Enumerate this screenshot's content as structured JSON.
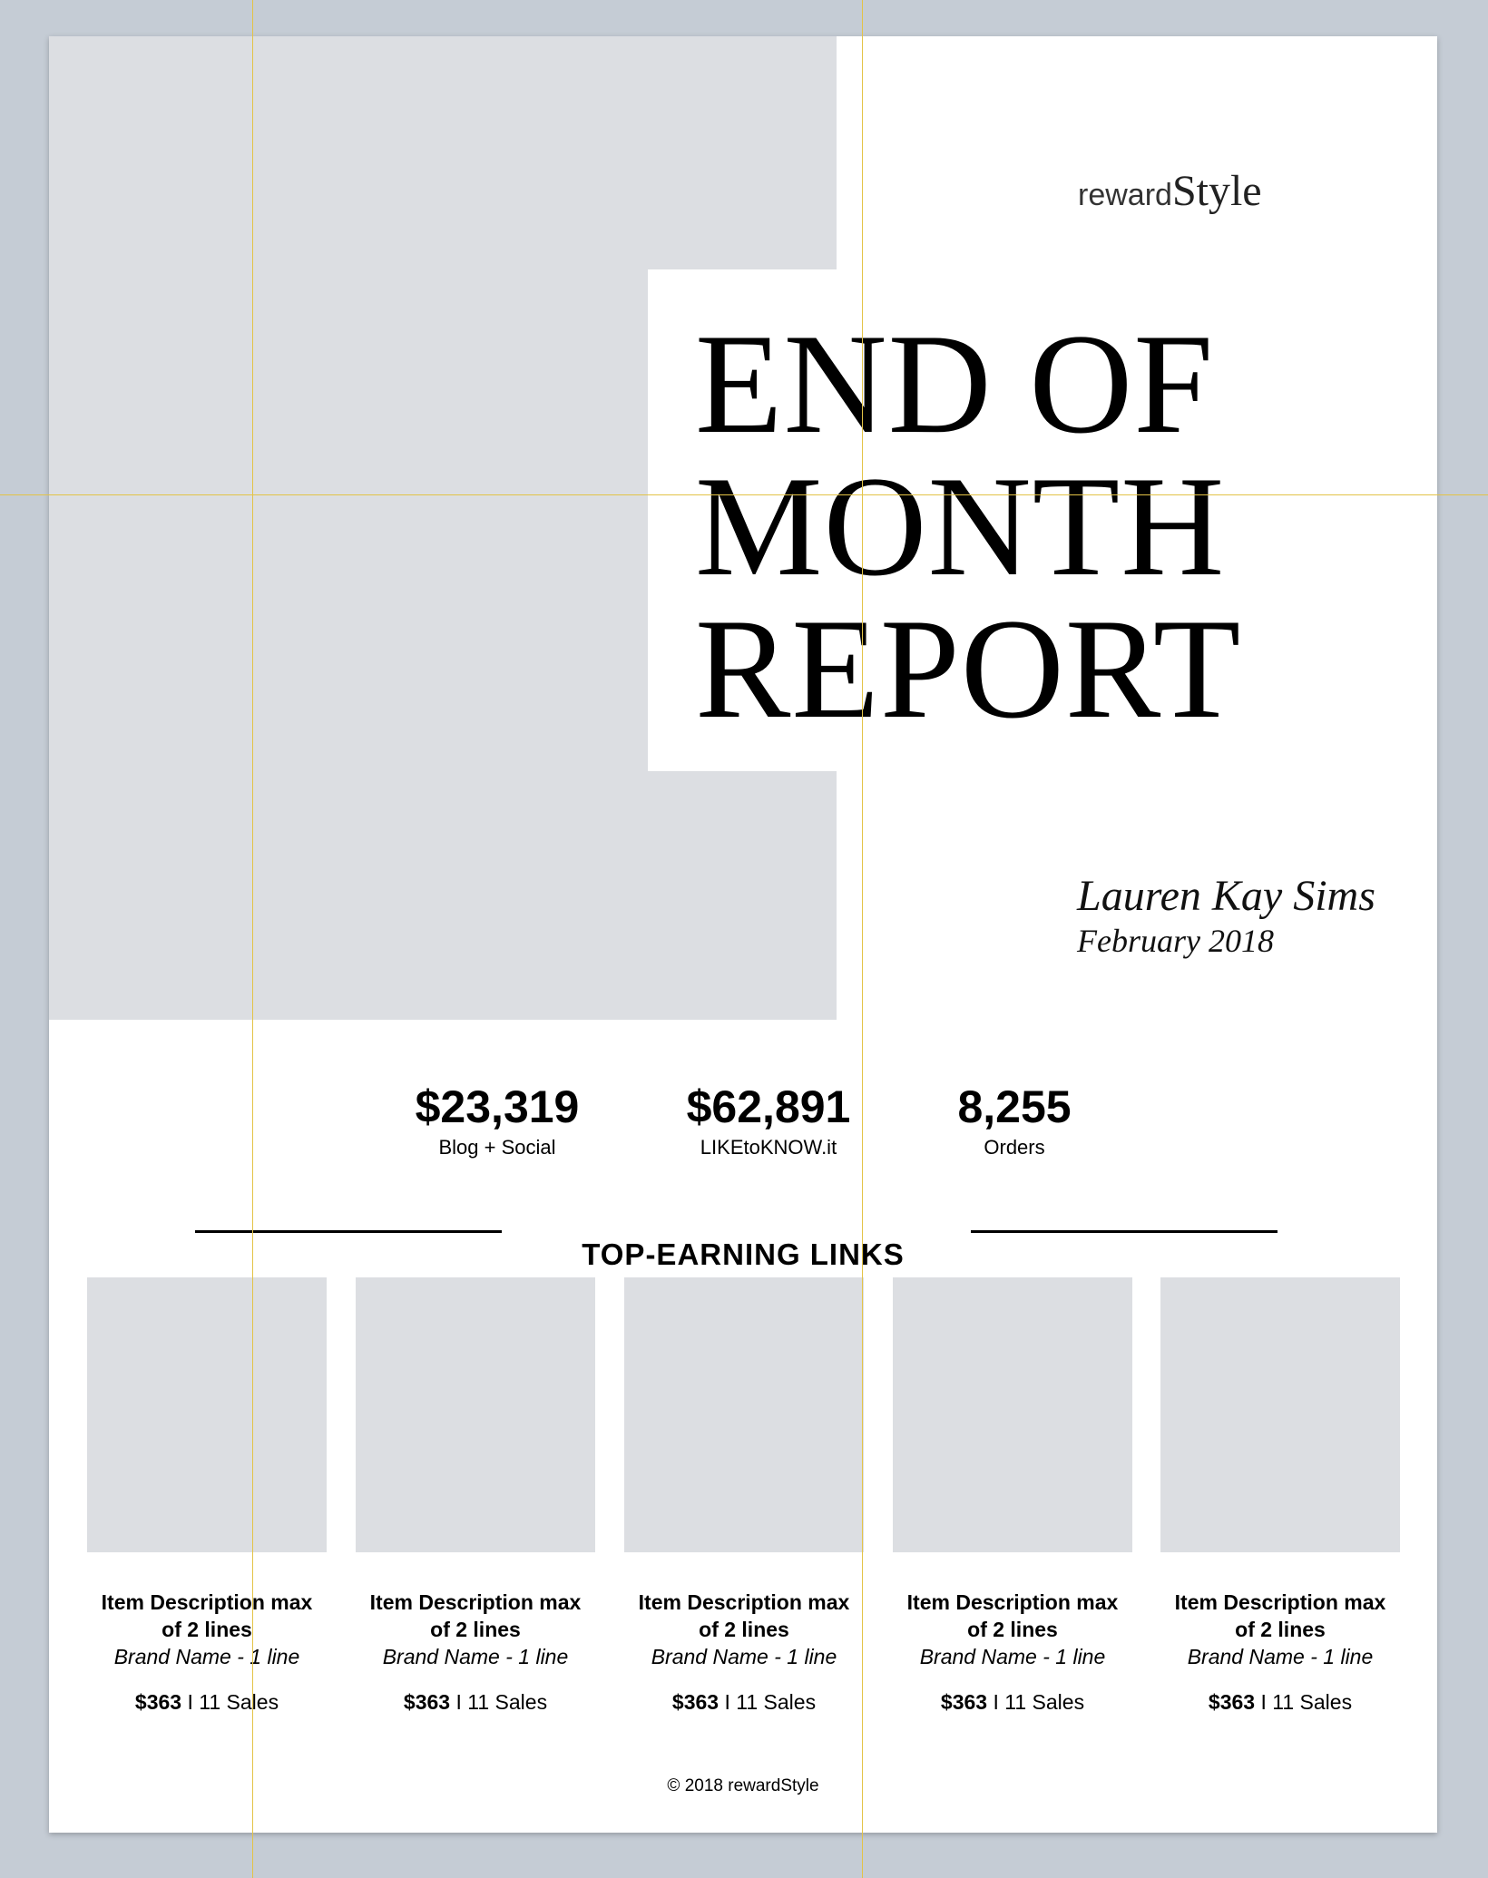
{
  "header": {
    "logo_reward": "reward",
    "logo_style": "Style",
    "title_lines": [
      "END OF",
      "MONTH",
      "REPORT"
    ],
    "author": "Lauren Kay Sims",
    "period": "February 2018"
  },
  "stats": [
    {
      "value": "$23,319",
      "label": "Blog + Social"
    },
    {
      "value": "$62,891",
      "label": "LIKEtoKNOW.it"
    },
    {
      "value": "8,255",
      "label": "Orders"
    }
  ],
  "section": {
    "title": "TOP-EARNING LINKS"
  },
  "products": [
    {
      "desc_line1": "Item Description max",
      "desc_line2": "of 2 lines",
      "brand": "Brand Name - 1 line",
      "price": "$363",
      "separator": "I",
      "sales": "11 Sales"
    },
    {
      "desc_line1": "Item Description max",
      "desc_line2": "of 2 lines",
      "brand": "Brand Name - 1 line",
      "price": "$363",
      "separator": "I",
      "sales": "11 Sales"
    },
    {
      "desc_line1": "Item Description max",
      "desc_line2": "of 2 lines",
      "brand": "Brand Name - 1 line",
      "price": "$363",
      "separator": "I",
      "sales": "11 Sales"
    },
    {
      "desc_line1": "Item Description max",
      "desc_line2": "of 2 lines",
      "brand": "Brand Name - 1 line",
      "price": "$363",
      "separator": "I",
      "sales": "11 Sales"
    },
    {
      "desc_line1": "Item Description max",
      "desc_line2": "of 2 lines",
      "brand": "Brand Name - 1 line",
      "price": "$363",
      "separator": "I",
      "sales": "11 Sales"
    }
  ],
  "footer": {
    "copyright": "© 2018 rewardStyle"
  },
  "colors": {
    "placeholder": "#dcdee2",
    "guide": "#e3c347",
    "canvas": "#c5ccd5"
  }
}
